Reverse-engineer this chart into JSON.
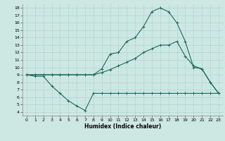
{
  "xlabel": "Humidex (Indice chaleur)",
  "xlim": [
    -0.5,
    23.5
  ],
  "ylim": [
    3.5,
    18.5
  ],
  "yticks": [
    4,
    5,
    6,
    7,
    8,
    9,
    10,
    11,
    12,
    13,
    14,
    15,
    16,
    17,
    18
  ],
  "xticks": [
    0,
    1,
    2,
    3,
    4,
    5,
    6,
    7,
    8,
    9,
    10,
    11,
    12,
    13,
    14,
    15,
    16,
    17,
    18,
    19,
    20,
    21,
    22,
    23
  ],
  "bg_color": "#cde8e3",
  "grid_color": "#b0d8d0",
  "line_color": "#1a6b5a",
  "line1_x": [
    0,
    1,
    2,
    3,
    4,
    5,
    6,
    7,
    8,
    9,
    10,
    11,
    12,
    13,
    14,
    15,
    16,
    17,
    18,
    19,
    20,
    21,
    22,
    23
  ],
  "line1_y": [
    9.0,
    8.8,
    8.8,
    7.5,
    6.5,
    5.5,
    4.8,
    4.2,
    6.5,
    6.5,
    6.5,
    6.5,
    6.5,
    6.5,
    6.5,
    6.5,
    6.5,
    6.5,
    6.5,
    6.5,
    6.5,
    6.5,
    6.5,
    6.5
  ],
  "line2_x": [
    0,
    1,
    2,
    3,
    4,
    5,
    6,
    7,
    8,
    9,
    10,
    11,
    12,
    13,
    14,
    15,
    16,
    17,
    18,
    19,
    20,
    21,
    22,
    23
  ],
  "line2_y": [
    9.0,
    9.0,
    9.0,
    9.0,
    9.0,
    9.0,
    9.0,
    9.0,
    9.0,
    9.3,
    9.7,
    10.2,
    10.7,
    11.2,
    12.0,
    12.5,
    13.0,
    13.0,
    13.5,
    11.5,
    10.2,
    9.8,
    8.0,
    6.5
  ],
  "line3_x": [
    0,
    1,
    2,
    3,
    4,
    5,
    6,
    7,
    8,
    9,
    10,
    11,
    12,
    13,
    14,
    15,
    16,
    17,
    18,
    19,
    20,
    21,
    22,
    23
  ],
  "line3_y": [
    9.0,
    9.0,
    9.0,
    9.0,
    9.0,
    9.0,
    9.0,
    9.0,
    9.0,
    9.8,
    11.8,
    12.0,
    13.5,
    14.0,
    15.5,
    17.5,
    18.0,
    17.5,
    16.0,
    13.5,
    10.0,
    9.8,
    8.0,
    6.5
  ]
}
